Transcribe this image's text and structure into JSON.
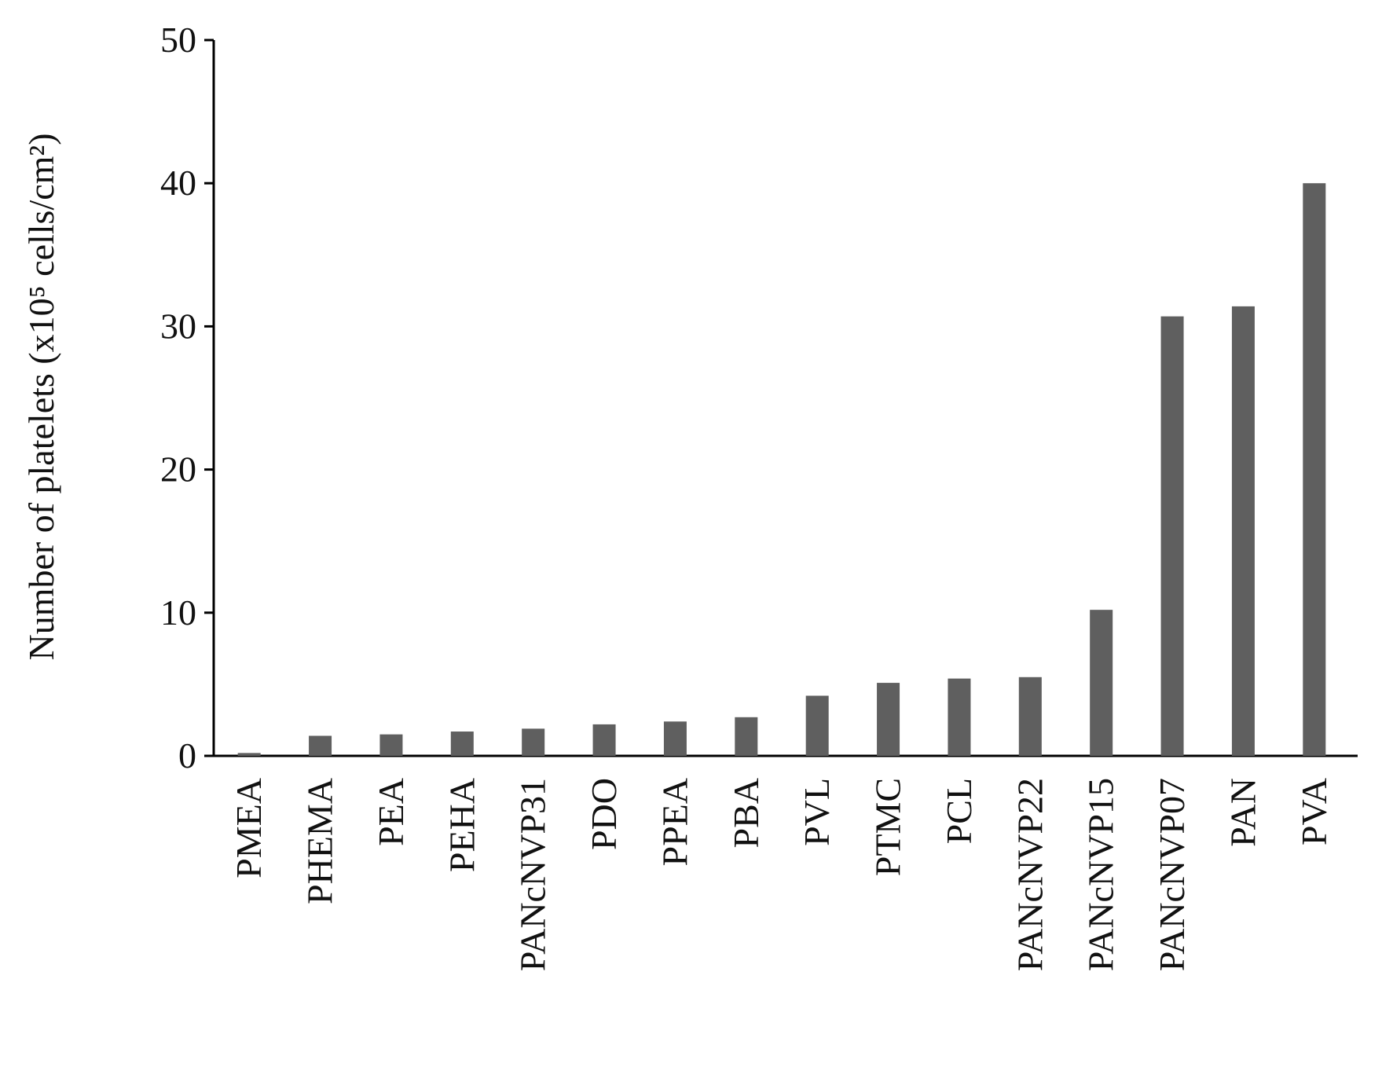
{
  "chart_data": {
    "type": "bar",
    "y_label": "Number of platelets (x10⁵ cells/cm²)",
    "categories": [
      "PMEA",
      "PHEMA",
      "PEA",
      "PEHA",
      "PANcNVP31",
      "PDO",
      "PPEA",
      "PBA",
      "PVL",
      "PTMC",
      "PCL",
      "PANcNVP22",
      "PANcNVP15",
      "PANcNVP07",
      "PAN",
      "PVA"
    ],
    "values": [
      0.2,
      1.4,
      1.5,
      1.7,
      1.9,
      2.2,
      2.4,
      2.7,
      4.2,
      5.1,
      5.4,
      5.5,
      10.2,
      30.7,
      31.4,
      40.0
    ],
    "color": "#5f5f5f",
    "ylim": [
      0,
      50
    ],
    "yticks": [
      0,
      10,
      20,
      30,
      40,
      50
    ],
    "grid": false
  }
}
